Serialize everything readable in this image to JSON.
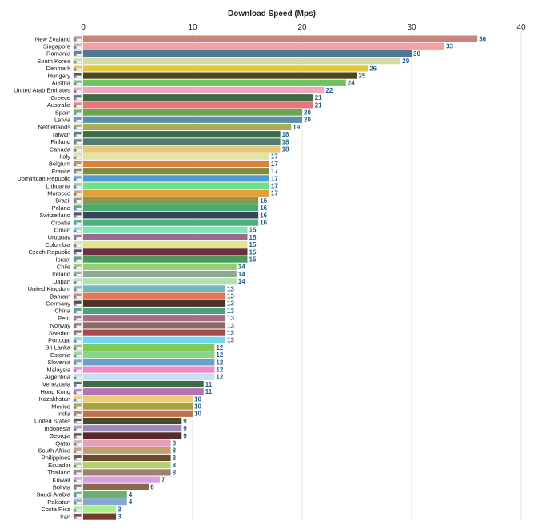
{
  "chart_data": {
    "type": "bar",
    "orientation": "horizontal",
    "title": "Download Speed (Mps)",
    "xlim": [
      0,
      40
    ],
    "xticks": [
      0,
      10,
      20,
      30,
      40
    ],
    "grid": true,
    "categories": [
      "New Zealand",
      "Singapore",
      "Romania",
      "South Korea",
      "Denmark",
      "Hungary",
      "Austria",
      "United Arab Emirates",
      "Greece",
      "Australia",
      "Spain",
      "Latvia",
      "Netherlands",
      "Taiwan",
      "Finland",
      "Canada",
      "Italy",
      "Belgium",
      "France",
      "Dominican Republic",
      "Lithuania",
      "Morocco",
      "Brazil",
      "Poland",
      "Switzerland",
      "Croatia",
      "Oman",
      "Uruguay",
      "Colombia",
      "Czech Republic",
      "Israel",
      "Chile",
      "Ireland",
      "Japan",
      "United Kingdom",
      "Bahrain",
      "Germany",
      "China",
      "Peru",
      "Norway",
      "Sweden",
      "Portugal",
      "Sri Lanka",
      "Estonia",
      "Slovenia",
      "Malaysia",
      "Argentina",
      "Venezuela",
      "Hong Kong",
      "Kazakhstan",
      "Mexico",
      "India",
      "United States",
      "Indonesia",
      "Georgia",
      "Qatar",
      "South Africa",
      "Philippines",
      "Ecuador",
      "Thailand",
      "Kuwait",
      "Bolivia",
      "Saudi Arabia",
      "Pakistan",
      "Costa Rica",
      "Iran"
    ],
    "values": [
      36,
      33,
      30,
      29,
      26,
      25,
      24,
      22,
      21,
      21,
      20,
      20,
      19,
      18,
      18,
      18,
      17,
      17,
      17,
      17,
      17,
      17,
      16,
      16,
      16,
      16,
      15,
      15,
      15,
      15,
      15,
      14,
      14,
      14,
      13,
      13,
      13,
      13,
      13,
      13,
      13,
      13,
      12,
      12,
      12,
      12,
      12,
      11,
      11,
      10,
      10,
      10,
      9,
      9,
      9,
      8,
      8,
      8,
      8,
      8,
      7,
      6,
      4,
      4,
      3,
      3
    ],
    "value_labels": [
      "36",
      "33",
      "30",
      "29",
      "26",
      "25",
      "24",
      "22",
      "21",
      "21",
      "20",
      "20",
      "19",
      "18",
      "18",
      "18",
      "17",
      "17",
      "17",
      "17",
      "17",
      "17",
      "16",
      "16",
      "16",
      "16",
      "15",
      "15",
      "15",
      "15",
      "15",
      "14",
      "14",
      "14",
      "13",
      "13",
      "13",
      "13",
      "13",
      "13",
      "13",
      "13",
      "12",
      "12",
      "12",
      "12",
      "12",
      "11",
      "11",
      "10",
      "10",
      "10",
      "9",
      "9",
      "9",
      "8",
      "8",
      "8",
      "8",
      "8",
      "7",
      "6",
      "4",
      "4",
      "3",
      "3"
    ],
    "colors": [
      "#c9857b",
      "#f2a0a0",
      "#4f7896",
      "#d6dba6",
      "#e5c93c",
      "#4a4a1e",
      "#6dc45e",
      "#efa8bd",
      "#3d6b45",
      "#e7777c",
      "#6aa84f",
      "#5b8fa8",
      "#a9ad58",
      "#3d6b45",
      "#4e7a72",
      "#e5c87a",
      "#dfe6a8",
      "#e07f3a",
      "#7d8c3c",
      "#4f9bd0",
      "#6fe08a",
      "#e3a03a",
      "#8c9a49",
      "#4caa6e",
      "#36465a",
      "#4ab07c",
      "#7ee6b4",
      "#9a6c8e",
      "#e2e68a",
      "#6b2f3f",
      "#4c9a5a",
      "#90d070",
      "#8fa896",
      "#b2e0b0",
      "#6fb8c4",
      "#e07a56",
      "#4a3428",
      "#4ca07a",
      "#a96b88",
      "#8b6a64",
      "#a64a4e",
      "#6fd8f0",
      "#7ecb5a",
      "#8cd48c",
      "#6aa0c8",
      "#f08cc4",
      "#c8e0f4",
      "#3d6b45",
      "#b474b4",
      "#e8d070",
      "#a8a040",
      "#c0704a",
      "#4a4a2a",
      "#9a8ab8",
      "#5a2a2a",
      "#e8a0b8",
      "#c0a070",
      "#6a4a2a",
      "#b0d070",
      "#a08070",
      "#d4a0e0",
      "#8a6a4a",
      "#6ab070",
      "#88a8d0",
      "#a8f08a",
      "#7a3a2a"
    ]
  }
}
